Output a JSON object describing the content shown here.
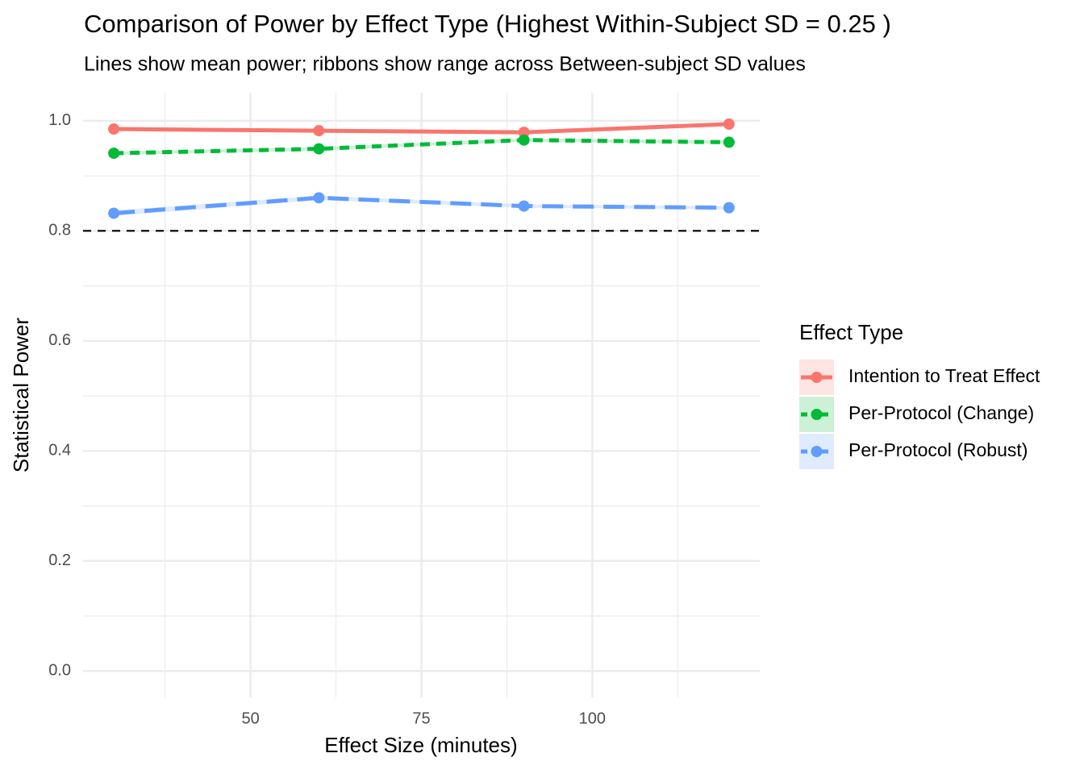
{
  "chart_data": {
    "type": "line",
    "title": "Comparison of Power by Effect Type (Highest Within-Subject SD = 0.25 )",
    "subtitle": "Lines show mean power; ribbons show range across Between-subject SD values",
    "x_label": "Effect Size (minutes)",
    "y_label": "Statistical Power",
    "x": [
      30,
      60,
      90,
      120
    ],
    "series": [
      {
        "name": "Intention to Treat Effect",
        "color": "#f8766d",
        "dash": "solid",
        "values": [
          0.985,
          0.982,
          0.979,
          0.994
        ],
        "ribbon_lower": [
          0.982,
          0.979,
          0.976,
          0.991
        ],
        "ribbon_upper": [
          0.988,
          0.985,
          0.982,
          0.997
        ]
      },
      {
        "name": "Per-Protocol (Change)",
        "color": "#00ba38",
        "dash": "dashed",
        "values": [
          0.941,
          0.949,
          0.965,
          0.961
        ],
        "ribbon_lower": [
          0.938,
          0.946,
          0.962,
          0.958
        ],
        "ribbon_upper": [
          0.944,
          0.952,
          0.968,
          0.964
        ]
      },
      {
        "name": "Per-Protocol (Robust)",
        "color": "#619cff",
        "dash": "longdash",
        "values": [
          0.832,
          0.86,
          0.845,
          0.842
        ],
        "ribbon_lower": [
          0.827,
          0.856,
          0.842,
          0.839
        ],
        "ribbon_upper": [
          0.837,
          0.864,
          0.848,
          0.845
        ]
      }
    ],
    "legend_title": "Effect Type",
    "legend_position": "right",
    "hline": 0.8,
    "xlim": [
      25.5,
      124.5
    ],
    "ylim": [
      -0.048,
      1.051
    ],
    "xticks": [
      50,
      75,
      100
    ],
    "yticks": [
      {
        "value": 0,
        "label": "0.0"
      },
      0.2,
      0.4,
      0.6,
      0.8,
      {
        "value": 1,
        "label": "1.0"
      }
    ],
    "x_minor_grid": [
      37.5,
      62.5,
      87.5,
      112.5
    ],
    "y_minor_grid": [
      0.1,
      0.3,
      0.5,
      0.7,
      0.9
    ],
    "grid": true
  }
}
